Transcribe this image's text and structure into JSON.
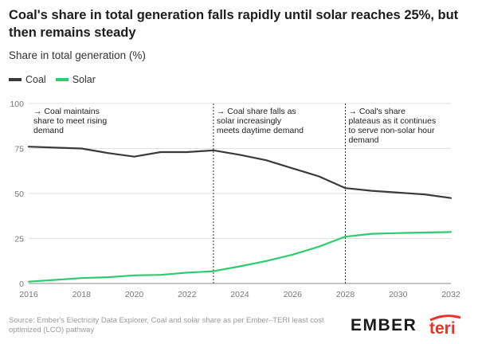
{
  "header": {
    "title": "Coal's share in total generation falls rapidly until solar reaches 25%, but then remains steady",
    "subtitle": "Share in total generation (%)"
  },
  "footer": {
    "source": "Source: Ember's Electricity Data Explorer, Coal and solar share as per Ember–TERI least cost optimized (LCO) pathway",
    "ember_logo": "EMBER",
    "teri_logo": "teri"
  },
  "chart_data": {
    "type": "line",
    "title": "Coal's share in total generation falls rapidly until solar reaches 25%, but then remains steady",
    "ylabel": "Share in total generation (%)",
    "xlabel": "",
    "xlim": [
      2016,
      2032
    ],
    "ylim": [
      0,
      100
    ],
    "x_ticks": [
      2016,
      2018,
      2020,
      2022,
      2024,
      2026,
      2028,
      2030,
      2032
    ],
    "y_ticks": [
      0,
      25,
      50,
      75,
      100
    ],
    "x": [
      2016,
      2017,
      2018,
      2019,
      2020,
      2021,
      2022,
      2023,
      2024,
      2025,
      2026,
      2027,
      2028,
      2029,
      2030,
      2031,
      2032
    ],
    "series": [
      {
        "name": "Coal",
        "color": "#3a3a3a",
        "values": [
          76,
          75.5,
          75,
          72.5,
          70.5,
          73,
          73,
          74,
          71.5,
          68.5,
          64,
          59.5,
          53,
          51.5,
          50.5,
          49.5,
          47.5
        ]
      },
      {
        "name": "Solar",
        "color": "#2ecc71",
        "values": [
          1,
          2,
          3,
          3.5,
          4.5,
          4.8,
          6,
          6.8,
          9.5,
          12.5,
          16,
          20.5,
          26,
          27.6,
          28,
          28.3,
          28.6
        ]
      }
    ],
    "vlines": [
      2023,
      2028
    ],
    "annotations": [
      {
        "x": 2016,
        "lines": [
          "→ Coal maintains",
          "share to meet rising",
          "demand"
        ]
      },
      {
        "x": 2023,
        "lines": [
          "→ Coal share falls as",
          "solar increasingly",
          "meets daytime demand"
        ]
      },
      {
        "x": 2028,
        "lines": [
          "→ Coal's share",
          "plateaus as it continues",
          "to serve non-solar hour",
          "demand"
        ]
      }
    ],
    "grid": "horizontal",
    "legend": "top-left"
  }
}
